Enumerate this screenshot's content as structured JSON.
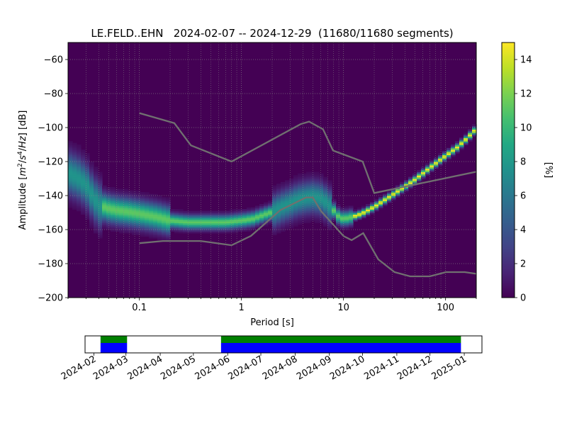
{
  "chart_data": [
    {
      "type": "heatmap",
      "title": "LE.FELD..EHN   2024-02-07 -- 2024-12-29  (11680/11680 segments)",
      "xlabel": "Period [s]",
      "ylabel": "Amplitude [m²/s⁴/Hz] [dB]",
      "xscale": "log",
      "xlim": [
        0.02,
        200
      ],
      "ylim": [
        -200,
        -50
      ],
      "xticks": [
        0.1,
        1,
        10,
        100
      ],
      "xticklabels": [
        "0.1",
        "1",
        "10",
        "100"
      ],
      "yticks": [
        -200,
        -180,
        -160,
        -140,
        -120,
        -100,
        -80,
        -60
      ],
      "yticklabels": [
        "−200",
        "−180",
        "−160",
        "−140",
        "−120",
        "−100",
        "−80",
        "−60"
      ],
      "grid": true,
      "colormap": "viridis",
      "colorbar": {
        "label": "[%]",
        "range": [
          0,
          15
        ],
        "ticks": [
          0,
          2,
          4,
          6,
          8,
          10,
          12,
          14
        ],
        "ticklabels": [
          "0",
          "2",
          "4",
          "6",
          "8",
          "10",
          "12",
          "14"
        ]
      },
      "mode_curve": {
        "period": [
          0.02,
          0.025,
          0.03,
          0.035,
          0.04,
          0.05,
          0.06,
          0.08,
          0.1,
          0.15,
          0.2,
          0.3,
          0.5,
          0.7,
          1.0,
          1.3,
          1.6,
          2.0,
          2.5,
          3.0,
          3.5,
          4.0,
          5.0,
          6.0,
          7.0,
          8.0,
          9.0,
          10,
          12,
          15,
          20,
          30,
          40,
          50,
          70,
          100,
          130,
          160,
          200
        ],
        "db": [
          -127,
          -130,
          -134,
          -141,
          -146,
          -148,
          -149,
          -150,
          -151,
          -153,
          -155,
          -156,
          -156,
          -156,
          -155,
          -154,
          -152,
          -150,
          -147,
          -145,
          -143,
          -142,
          -141,
          -142,
          -145,
          -149,
          -153,
          -154,
          -153,
          -151,
          -147,
          -140,
          -135,
          -131,
          -124,
          -117,
          -112,
          -107,
          -101
        ],
        "peak_percent": 14
      },
      "noise_models": {
        "nhnm": {
          "period": [
            0.1,
            0.22,
            0.32,
            0.8,
            3.8,
            4.6,
            6.3,
            7.9,
            15.4,
            20,
            354.8
          ],
          "db": [
            -91.5,
            -97.4,
            -110.5,
            -120,
            -98,
            -96.5,
            -101,
            -113.5,
            -120,
            -138.5,
            -126
          ]
        },
        "nlnm": {
          "period": [
            0.1,
            0.17,
            0.4,
            0.8,
            1.24,
            2.4,
            4.3,
            5.0,
            6.0,
            10,
            12,
            15.6,
            21.9,
            31.6,
            45,
            70,
            101,
            154,
            200
          ],
          "db": [
            -168,
            -166.7,
            -166.7,
            -169.2,
            -163.7,
            -148.6,
            -141.1,
            -141.1,
            -149,
            -163.8,
            -166.2,
            -162.1,
            -177.5,
            -185,
            -187.5,
            -187.5,
            -185,
            -185,
            -186
          ]
        },
        "color": "#707070"
      }
    },
    {
      "type": "timeline",
      "xlim": [
        "2024-01-24",
        "2025-01-17"
      ],
      "tick_dates": [
        "2024-02-01",
        "2024-03-01",
        "2024-04-01",
        "2024-05-01",
        "2024-06-01",
        "2024-07-01",
        "2024-08-01",
        "2024-09-01",
        "2024-10-01",
        "2024-11-01",
        "2024-12-01",
        "2025-01-01"
      ],
      "tick_labels": [
        "2024-02",
        "2024-03",
        "2024-04",
        "2024-05",
        "2024-06",
        "2024-07",
        "2024-08",
        "2024-09",
        "2024-10",
        "2024-11",
        "2024-12",
        "2025-01"
      ],
      "coverage": [
        {
          "start": "2024-02-07",
          "end": "2024-03-02"
        },
        {
          "start": "2024-05-26",
          "end": "2024-12-29"
        }
      ],
      "colors": {
        "data": "#0000ff",
        "used": "#008000",
        "gap": "#ffffff"
      }
    }
  ]
}
